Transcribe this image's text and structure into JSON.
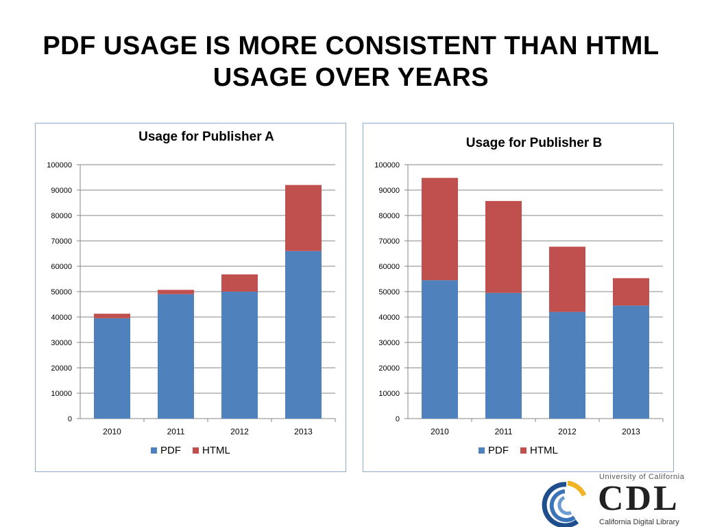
{
  "slide": {
    "title_line1": "PDF USAGE IS MORE CONSISTENT THAN HTML",
    "title_line2": "USAGE OVER YEARS"
  },
  "colors": {
    "pdf": "#4f81bd",
    "html": "#c0504d",
    "grid": "#868686",
    "border": "#8eaacb"
  },
  "chart_data": [
    {
      "type": "bar",
      "stacked": true,
      "title": "Usage for Publisher A",
      "categories": [
        "2010",
        "2011",
        "2012",
        "2013"
      ],
      "series": [
        {
          "name": "PDF",
          "values": [
            39500,
            49000,
            50000,
            66000
          ]
        },
        {
          "name": "HTML",
          "values": [
            1800,
            1700,
            6800,
            26000
          ]
        }
      ],
      "ylim": [
        0,
        100000
      ],
      "yticks": [
        "0",
        "10000",
        "20000",
        "30000",
        "40000",
        "50000",
        "60000",
        "70000",
        "80000",
        "90000",
        "100000"
      ],
      "grid": true,
      "legend": "bottom"
    },
    {
      "type": "bar",
      "stacked": true,
      "title": "Usage for Publisher B",
      "categories": [
        "2010",
        "2011",
        "2012",
        "2013"
      ],
      "series": [
        {
          "name": "PDF",
          "values": [
            54500,
            49500,
            42000,
            44500
          ]
        },
        {
          "name": "HTML",
          "values": [
            40300,
            36200,
            25700,
            10800
          ]
        }
      ],
      "ylim": [
        0,
        100000
      ],
      "yticks": [
        "0",
        "10000",
        "20000",
        "30000",
        "40000",
        "50000",
        "60000",
        "70000",
        "80000",
        "90000",
        "100000"
      ],
      "grid": true,
      "legend": "bottom"
    }
  ],
  "logo": {
    "top_text": "University of California",
    "main_text": "CDL",
    "bottom_text": "California Digital Library"
  }
}
